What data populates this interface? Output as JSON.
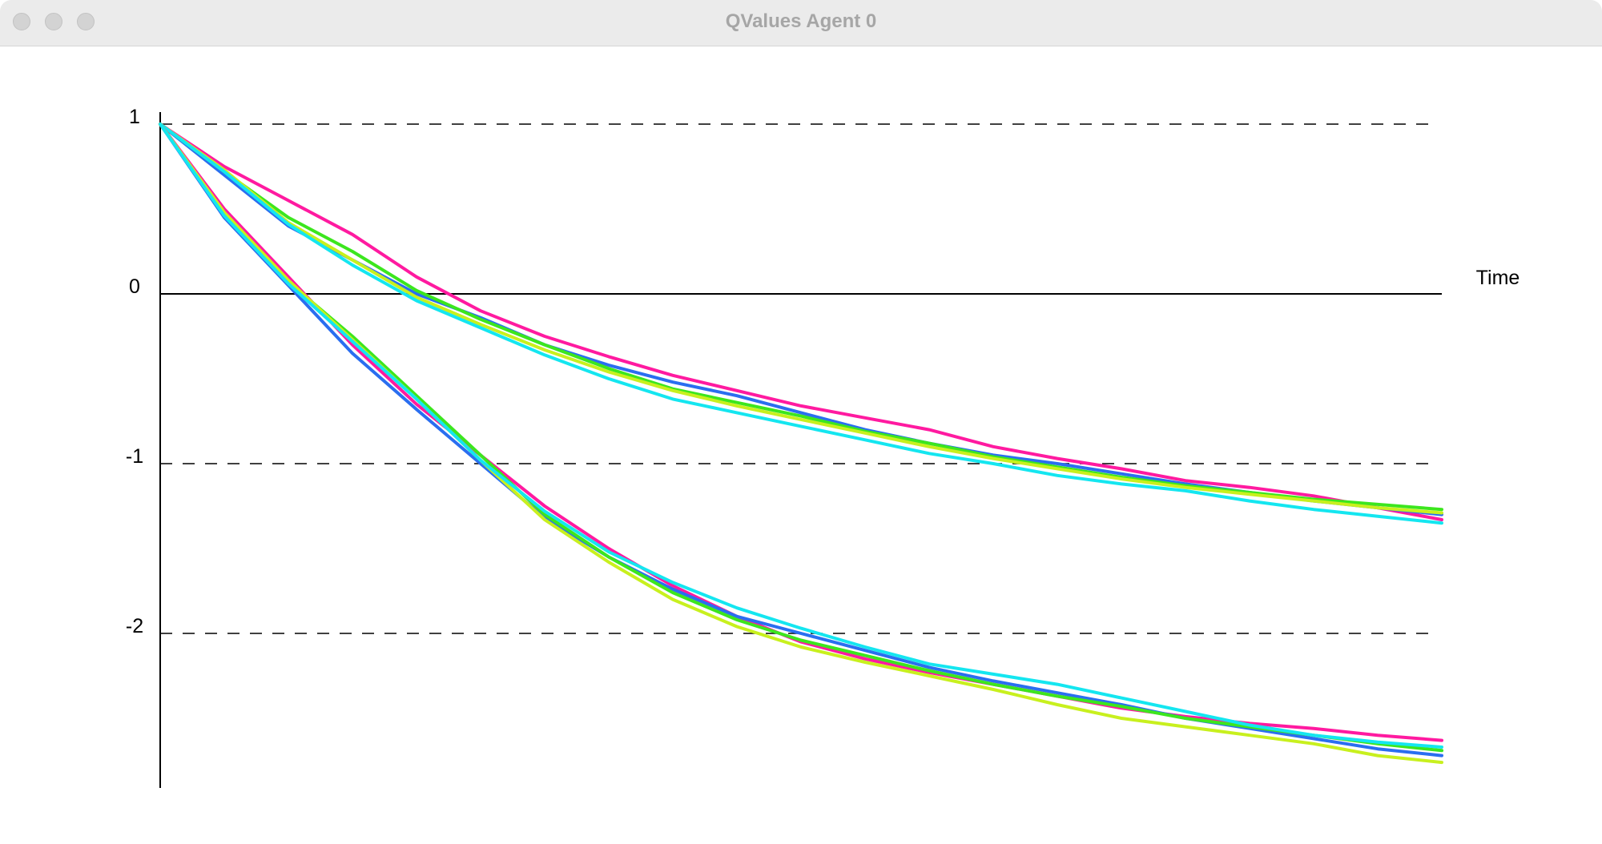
{
  "window": {
    "title": "QValues Agent 0"
  },
  "chart_data": {
    "type": "line",
    "title": "",
    "xlabel": "Time",
    "ylabel": "",
    "ylim": [
      -2.95,
      1.05
    ],
    "xlim": [
      0,
      1
    ],
    "yticks": [
      {
        "value": 1,
        "label": "1"
      },
      {
        "value": 0,
        "label": "0"
      },
      {
        "value": -1,
        "label": "-1"
      },
      {
        "value": -2,
        "label": "-2"
      }
    ],
    "grid": "dashed horizontal lines at 1, -1, -2; solid line at 0",
    "legend": "none",
    "series": [
      {
        "color": "#ff1aa0",
        "x": [
          0,
          0.05,
          0.1,
          0.15,
          0.2,
          0.25,
          0.3,
          0.35,
          0.4,
          0.45,
          0.5,
          0.55,
          0.6,
          0.65,
          0.7,
          0.75,
          0.8,
          0.85,
          0.9,
          0.95,
          1.0
        ],
        "values": [
          1.0,
          0.75,
          0.55,
          0.35,
          0.1,
          -0.1,
          -0.25,
          -0.37,
          -0.48,
          -0.57,
          -0.66,
          -0.73,
          -0.8,
          -0.9,
          -0.97,
          -1.03,
          -1.1,
          -1.14,
          -1.19,
          -1.26,
          -1.33
        ]
      },
      {
        "color": "#2a6ef0",
        "x": [
          0,
          0.05,
          0.1,
          0.15,
          0.2,
          0.25,
          0.3,
          0.35,
          0.4,
          0.45,
          0.5,
          0.55,
          0.6,
          0.65,
          0.7,
          0.75,
          0.8,
          0.85,
          0.9,
          0.95,
          1.0
        ],
        "values": [
          1.0,
          0.7,
          0.4,
          0.2,
          0.0,
          -0.14,
          -0.3,
          -0.42,
          -0.52,
          -0.6,
          -0.7,
          -0.8,
          -0.88,
          -0.95,
          -1.0,
          -1.06,
          -1.12,
          -1.17,
          -1.22,
          -1.26,
          -1.3
        ]
      },
      {
        "color": "#3ce61e",
        "x": [
          0,
          0.05,
          0.1,
          0.15,
          0.2,
          0.25,
          0.3,
          0.35,
          0.4,
          0.45,
          0.5,
          0.55,
          0.6,
          0.65,
          0.7,
          0.75,
          0.8,
          0.85,
          0.9,
          0.95,
          1.0
        ],
        "values": [
          1.0,
          0.72,
          0.45,
          0.25,
          0.02,
          -0.15,
          -0.3,
          -0.44,
          -0.56,
          -0.64,
          -0.72,
          -0.81,
          -0.88,
          -0.96,
          -1.02,
          -1.08,
          -1.13,
          -1.17,
          -1.21,
          -1.24,
          -1.27
        ]
      },
      {
        "color": "#c8f01e",
        "x": [
          0,
          0.05,
          0.1,
          0.15,
          0.2,
          0.25,
          0.3,
          0.35,
          0.4,
          0.45,
          0.5,
          0.55,
          0.6,
          0.65,
          0.7,
          0.75,
          0.8,
          0.85,
          0.9,
          0.95,
          1.0
        ],
        "values": [
          1.0,
          0.73,
          0.42,
          0.2,
          -0.02,
          -0.18,
          -0.33,
          -0.46,
          -0.57,
          -0.66,
          -0.74,
          -0.82,
          -0.9,
          -0.97,
          -1.03,
          -1.09,
          -1.14,
          -1.18,
          -1.22,
          -1.26,
          -1.29
        ]
      },
      {
        "color": "#14e6f0",
        "x": [
          0,
          0.05,
          0.1,
          0.15,
          0.2,
          0.25,
          0.3,
          0.35,
          0.4,
          0.45,
          0.5,
          0.55,
          0.6,
          0.65,
          0.7,
          0.75,
          0.8,
          0.85,
          0.9,
          0.95,
          1.0
        ],
        "values": [
          1.0,
          0.72,
          0.41,
          0.17,
          -0.04,
          -0.2,
          -0.36,
          -0.5,
          -0.62,
          -0.7,
          -0.78,
          -0.86,
          -0.94,
          -1.0,
          -1.07,
          -1.12,
          -1.16,
          -1.22,
          -1.27,
          -1.31,
          -1.35
        ]
      },
      {
        "color": "#ff1aa0",
        "x": [
          0,
          0.05,
          0.1,
          0.15,
          0.2,
          0.25,
          0.3,
          0.35,
          0.4,
          0.45,
          0.5,
          0.55,
          0.6,
          0.65,
          0.7,
          0.75,
          0.8,
          0.85,
          0.9,
          0.95,
          1.0
        ],
        "values": [
          1.0,
          0.5,
          0.1,
          -0.3,
          -0.65,
          -0.95,
          -1.25,
          -1.5,
          -1.72,
          -1.9,
          -2.05,
          -2.15,
          -2.23,
          -2.3,
          -2.37,
          -2.44,
          -2.49,
          -2.53,
          -2.56,
          -2.6,
          -2.63
        ]
      },
      {
        "color": "#2a6ef0",
        "x": [
          0,
          0.05,
          0.1,
          0.15,
          0.2,
          0.25,
          0.3,
          0.35,
          0.4,
          0.45,
          0.5,
          0.55,
          0.6,
          0.65,
          0.7,
          0.75,
          0.8,
          0.85,
          0.9,
          0.95,
          1.0
        ],
        "values": [
          1.0,
          0.45,
          0.05,
          -0.35,
          -0.68,
          -1.0,
          -1.32,
          -1.55,
          -1.74,
          -1.9,
          -2.0,
          -2.1,
          -2.2,
          -2.28,
          -2.35,
          -2.42,
          -2.5,
          -2.56,
          -2.62,
          -2.68,
          -2.72
        ]
      },
      {
        "color": "#3ce61e",
        "x": [
          0,
          0.05,
          0.1,
          0.15,
          0.2,
          0.25,
          0.3,
          0.35,
          0.4,
          0.45,
          0.5,
          0.55,
          0.6,
          0.65,
          0.7,
          0.75,
          0.8,
          0.85,
          0.9,
          0.95,
          1.0
        ],
        "values": [
          1.0,
          0.47,
          0.07,
          -0.25,
          -0.6,
          -0.95,
          -1.3,
          -1.55,
          -1.76,
          -1.92,
          -2.04,
          -2.13,
          -2.22,
          -2.3,
          -2.37,
          -2.43,
          -2.5,
          -2.55,
          -2.6,
          -2.65,
          -2.69
        ]
      },
      {
        "color": "#c8f01e",
        "x": [
          0,
          0.05,
          0.1,
          0.15,
          0.2,
          0.25,
          0.3,
          0.35,
          0.4,
          0.45,
          0.5,
          0.55,
          0.6,
          0.65,
          0.7,
          0.75,
          0.8,
          0.85,
          0.9,
          0.95,
          1.0
        ],
        "values": [
          1.0,
          0.48,
          0.08,
          -0.27,
          -0.62,
          -0.98,
          -1.33,
          -1.58,
          -1.8,
          -1.96,
          -2.08,
          -2.17,
          -2.25,
          -2.33,
          -2.42,
          -2.5,
          -2.55,
          -2.6,
          -2.65,
          -2.72,
          -2.76
        ]
      },
      {
        "color": "#14e6f0",
        "x": [
          0,
          0.05,
          0.1,
          0.15,
          0.2,
          0.25,
          0.3,
          0.35,
          0.4,
          0.45,
          0.5,
          0.55,
          0.6,
          0.65,
          0.7,
          0.75,
          0.8,
          0.85,
          0.9,
          0.95,
          1.0
        ],
        "values": [
          1.0,
          0.46,
          0.06,
          -0.28,
          -0.62,
          -0.98,
          -1.28,
          -1.52,
          -1.7,
          -1.85,
          -1.97,
          -2.08,
          -2.18,
          -2.24,
          -2.3,
          -2.38,
          -2.46,
          -2.54,
          -2.6,
          -2.64,
          -2.67
        ]
      }
    ]
  }
}
